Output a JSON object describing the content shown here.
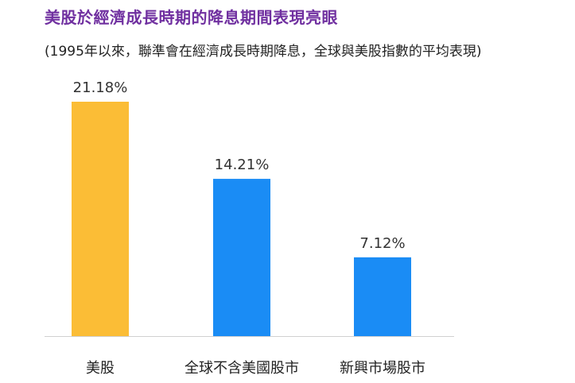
{
  "header": {
    "title": "美股於經濟成長時期的降息期間表現亮眼",
    "subtitle": "(1995年以來，聯準會在經濟成長時期降息，全球與美股指數的平均表現)"
  },
  "colors": {
    "title": "#7030a0",
    "bar_us": "#fbbd36",
    "bar_other": "#1a8cf5",
    "axis": "#d0d0d0"
  },
  "chart_data": {
    "type": "bar",
    "title": "美股於經濟成長時期的降息期間表現亮眼",
    "subtitle": "(1995年以來，聯準會在經濟成長時期降息，全球與美股指數的平均表現)",
    "categories": [
      "美股",
      "全球不含美國股市",
      "新興市場股市"
    ],
    "values": [
      21.18,
      14.21,
      7.12
    ],
    "value_labels": [
      "21.18%",
      "14.21%",
      "7.12%"
    ],
    "unit": "%",
    "ylim": [
      0,
      21.18
    ],
    "grid": false,
    "legend": "none"
  }
}
